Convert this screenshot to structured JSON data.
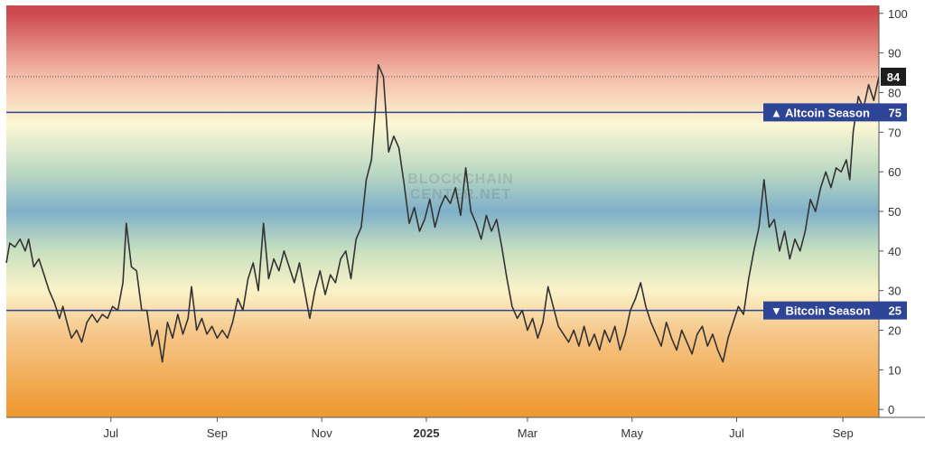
{
  "watermark": [
    "BLOCKCHAIN",
    "CENTER.NET"
  ],
  "chart_data": {
    "type": "line",
    "title": "",
    "xlabel": "",
    "ylabel": "",
    "ylim": [
      -2,
      102
    ],
    "y_ticks": [
      0,
      10,
      20,
      30,
      40,
      50,
      60,
      70,
      80,
      90,
      100
    ],
    "x_ticks": [
      {
        "label": "Jul",
        "date": "2024-07-01"
      },
      {
        "label": "Sep",
        "date": "2024-09-01"
      },
      {
        "label": "Nov",
        "date": "2024-11-01"
      },
      {
        "label": "2025",
        "date": "2025-01-01",
        "bold": true
      },
      {
        "label": "Mar",
        "date": "2025-03-01"
      },
      {
        "label": "May",
        "date": "2025-05-01"
      },
      {
        "label": "Jul",
        "date": "2025-07-01"
      },
      {
        "label": "Sep",
        "date": "2025-09-01"
      }
    ],
    "x_range": [
      "2024-05-01",
      "2025-09-22"
    ],
    "background_gradient": [
      {
        "value": 100,
        "color": "#cd4a4f"
      },
      {
        "value": 85,
        "color": "#f3b8a5"
      },
      {
        "value": 72,
        "color": "#fcf8d4"
      },
      {
        "value": 60,
        "color": "#bcd8c2"
      },
      {
        "value": 50,
        "color": "#7fb0c8"
      },
      {
        "value": 40,
        "color": "#c8e0c0"
      },
      {
        "value": 30,
        "color": "#fbf2c8"
      },
      {
        "value": 20,
        "color": "#f6c98e"
      },
      {
        "value": 0,
        "color": "#ef9b34"
      }
    ],
    "series": [
      {
        "color": "#333333",
        "points": [
          [
            "2024-05-01",
            37
          ],
          [
            "2024-05-03",
            42
          ],
          [
            "2024-05-06",
            41
          ],
          [
            "2024-05-09",
            43
          ],
          [
            "2024-05-12",
            40
          ],
          [
            "2024-05-14",
            43
          ],
          [
            "2024-05-17",
            36
          ],
          [
            "2024-05-20",
            38
          ],
          [
            "2024-05-23",
            34
          ],
          [
            "2024-05-26",
            30
          ],
          [
            "2024-05-29",
            27
          ],
          [
            "2024-06-01",
            23
          ],
          [
            "2024-06-03",
            26
          ],
          [
            "2024-06-06",
            21
          ],
          [
            "2024-06-08",
            18
          ],
          [
            "2024-06-11",
            20
          ],
          [
            "2024-06-14",
            17
          ],
          [
            "2024-06-17",
            22
          ],
          [
            "2024-06-20",
            24
          ],
          [
            "2024-06-23",
            22
          ],
          [
            "2024-06-26",
            24
          ],
          [
            "2024-06-29",
            23
          ],
          [
            "2024-07-02",
            26
          ],
          [
            "2024-07-05",
            25
          ],
          [
            "2024-07-08",
            32
          ],
          [
            "2024-07-10",
            47
          ],
          [
            "2024-07-13",
            36
          ],
          [
            "2024-07-16",
            35
          ],
          [
            "2024-07-19",
            25
          ],
          [
            "2024-07-22",
            25
          ],
          [
            "2024-07-25",
            16
          ],
          [
            "2024-07-28",
            20
          ],
          [
            "2024-07-31",
            12
          ],
          [
            "2024-08-03",
            22
          ],
          [
            "2024-08-06",
            18
          ],
          [
            "2024-08-09",
            24
          ],
          [
            "2024-08-12",
            19
          ],
          [
            "2024-08-15",
            23
          ],
          [
            "2024-08-17",
            31
          ],
          [
            "2024-08-20",
            20
          ],
          [
            "2024-08-23",
            23
          ],
          [
            "2024-08-26",
            19
          ],
          [
            "2024-08-29",
            21
          ],
          [
            "2024-09-01",
            18
          ],
          [
            "2024-09-04",
            20
          ],
          [
            "2024-09-07",
            18
          ],
          [
            "2024-09-10",
            22
          ],
          [
            "2024-09-13",
            28
          ],
          [
            "2024-09-16",
            25
          ],
          [
            "2024-09-19",
            33
          ],
          [
            "2024-09-22",
            37
          ],
          [
            "2024-09-25",
            30
          ],
          [
            "2024-09-28",
            47
          ],
          [
            "2024-10-01",
            33
          ],
          [
            "2024-10-04",
            38
          ],
          [
            "2024-10-07",
            35
          ],
          [
            "2024-10-10",
            40
          ],
          [
            "2024-10-13",
            36
          ],
          [
            "2024-10-16",
            32
          ],
          [
            "2024-10-19",
            37
          ],
          [
            "2024-10-22",
            30
          ],
          [
            "2024-10-25",
            23
          ],
          [
            "2024-10-28",
            30
          ],
          [
            "2024-10-31",
            35
          ],
          [
            "2024-11-03",
            29
          ],
          [
            "2024-11-06",
            34
          ],
          [
            "2024-11-09",
            32
          ],
          [
            "2024-11-12",
            38
          ],
          [
            "2024-11-15",
            40
          ],
          [
            "2024-11-18",
            33
          ],
          [
            "2024-11-21",
            43
          ],
          [
            "2024-11-24",
            46
          ],
          [
            "2024-11-27",
            58
          ],
          [
            "2024-11-30",
            63
          ],
          [
            "2024-12-02",
            74
          ],
          [
            "2024-12-04",
            87
          ],
          [
            "2024-12-07",
            84
          ],
          [
            "2024-12-10",
            65
          ],
          [
            "2024-12-13",
            69
          ],
          [
            "2024-12-16",
            66
          ],
          [
            "2024-12-19",
            57
          ],
          [
            "2024-12-22",
            47
          ],
          [
            "2024-12-25",
            51
          ],
          [
            "2024-12-28",
            45
          ],
          [
            "2024-12-31",
            48
          ],
          [
            "2025-01-03",
            53
          ],
          [
            "2025-01-06",
            46
          ],
          [
            "2025-01-09",
            51
          ],
          [
            "2025-01-12",
            54
          ],
          [
            "2025-01-15",
            52
          ],
          [
            "2025-01-18",
            56
          ],
          [
            "2025-01-21",
            49
          ],
          [
            "2025-01-24",
            61
          ],
          [
            "2025-01-27",
            50
          ],
          [
            "2025-01-30",
            47
          ],
          [
            "2025-02-02",
            43
          ],
          [
            "2025-02-05",
            49
          ],
          [
            "2025-02-08",
            45
          ],
          [
            "2025-02-11",
            48
          ],
          [
            "2025-02-14",
            41
          ],
          [
            "2025-02-17",
            33
          ],
          [
            "2025-02-20",
            26
          ],
          [
            "2025-02-23",
            23
          ],
          [
            "2025-02-26",
            25
          ],
          [
            "2025-03-01",
            20
          ],
          [
            "2025-03-04",
            23
          ],
          [
            "2025-03-07",
            18
          ],
          [
            "2025-03-10",
            22
          ],
          [
            "2025-03-13",
            31
          ],
          [
            "2025-03-16",
            26
          ],
          [
            "2025-03-19",
            21
          ],
          [
            "2025-03-22",
            19
          ],
          [
            "2025-03-25",
            17
          ],
          [
            "2025-03-28",
            20
          ],
          [
            "2025-03-31",
            16
          ],
          [
            "2025-04-03",
            21
          ],
          [
            "2025-04-06",
            16
          ],
          [
            "2025-04-09",
            19
          ],
          [
            "2025-04-12",
            15
          ],
          [
            "2025-04-15",
            20
          ],
          [
            "2025-04-18",
            17
          ],
          [
            "2025-04-21",
            21
          ],
          [
            "2025-04-24",
            15
          ],
          [
            "2025-04-27",
            19
          ],
          [
            "2025-04-30",
            25
          ],
          [
            "2025-05-03",
            28
          ],
          [
            "2025-05-06",
            32
          ],
          [
            "2025-05-09",
            26
          ],
          [
            "2025-05-12",
            22
          ],
          [
            "2025-05-15",
            19
          ],
          [
            "2025-05-18",
            16
          ],
          [
            "2025-05-21",
            22
          ],
          [
            "2025-05-24",
            18
          ],
          [
            "2025-05-27",
            15
          ],
          [
            "2025-05-30",
            20
          ],
          [
            "2025-06-02",
            17
          ],
          [
            "2025-06-05",
            14
          ],
          [
            "2025-06-08",
            19
          ],
          [
            "2025-06-11",
            21
          ],
          [
            "2025-06-14",
            16
          ],
          [
            "2025-06-17",
            19
          ],
          [
            "2025-06-20",
            15
          ],
          [
            "2025-06-23",
            12
          ],
          [
            "2025-06-26",
            18
          ],
          [
            "2025-06-29",
            22
          ],
          [
            "2025-07-02",
            26
          ],
          [
            "2025-07-05",
            24
          ],
          [
            "2025-07-08",
            33
          ],
          [
            "2025-07-11",
            40
          ],
          [
            "2025-07-14",
            46
          ],
          [
            "2025-07-17",
            58
          ],
          [
            "2025-07-20",
            46
          ],
          [
            "2025-07-23",
            48
          ],
          [
            "2025-07-26",
            40
          ],
          [
            "2025-07-29",
            45
          ],
          [
            "2025-08-01",
            38
          ],
          [
            "2025-08-04",
            43
          ],
          [
            "2025-08-07",
            40
          ],
          [
            "2025-08-10",
            45
          ],
          [
            "2025-08-13",
            53
          ],
          [
            "2025-08-16",
            50
          ],
          [
            "2025-08-19",
            56
          ],
          [
            "2025-08-22",
            60
          ],
          [
            "2025-08-25",
            56
          ],
          [
            "2025-08-28",
            61
          ],
          [
            "2025-08-31",
            60
          ],
          [
            "2025-09-03",
            63
          ],
          [
            "2025-09-05",
            58
          ],
          [
            "2025-09-07",
            70
          ],
          [
            "2025-09-10",
            79
          ],
          [
            "2025-09-13",
            76
          ],
          [
            "2025-09-16",
            82
          ],
          [
            "2025-09-19",
            78
          ],
          [
            "2025-09-22",
            84
          ]
        ]
      }
    ],
    "reference_lines": [
      {
        "value": 75,
        "label": "▲ Altcoin Season",
        "value_label": "75",
        "color": "#2e4496"
      },
      {
        "value": 25,
        "label": "▼ Bitcoin Season",
        "value_label": "25",
        "color": "#2e4496"
      }
    ],
    "last_value": {
      "value": 84,
      "label": "84"
    },
    "grid": false,
    "legend": "none"
  }
}
